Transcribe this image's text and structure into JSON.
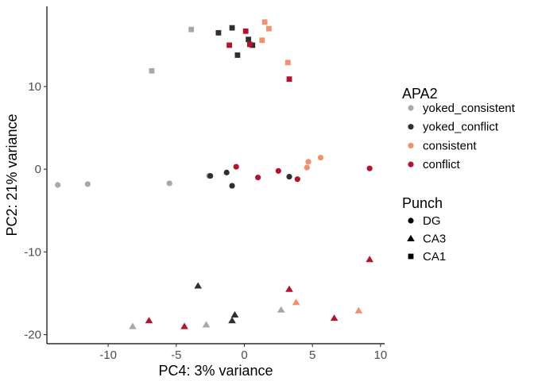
{
  "chart_data": {
    "type": "scatter",
    "xlabel": "PC4: 3% variance",
    "ylabel": "PC2: 21% variance",
    "xlim": [
      -14.5,
      10.3
    ],
    "ylim": [
      -21.1,
      19.7
    ],
    "xticks": [
      -10,
      -5,
      0,
      5,
      10
    ],
    "yticks": [
      -20,
      -10,
      0,
      10
    ],
    "xtick_labels": [
      "-10",
      "-5",
      "0",
      "5",
      "10"
    ],
    "ytick_labels": [
      "-20",
      "-10",
      "0",
      "10"
    ],
    "grid": false,
    "legend_position": "right",
    "legends": {
      "color": {
        "title": "APA2",
        "entries": [
          {
            "label": "yoked_consistent",
            "key": "yoked_consistent",
            "color": "#a8a8a8"
          },
          {
            "label": "yoked_conflict",
            "key": "yoked_conflict",
            "color": "#2f2f2f"
          },
          {
            "label": "consistent",
            "key": "consistent",
            "color": "#f1906d"
          },
          {
            "label": "conflict",
            "key": "conflict",
            "color": "#b5132d"
          }
        ]
      },
      "shape": {
        "title": "Punch",
        "entries": [
          {
            "label": "DG",
            "key": "DG",
            "shape": "circle"
          },
          {
            "label": "CA3",
            "key": "CA3",
            "shape": "triangle"
          },
          {
            "label": "CA1",
            "key": "CA1",
            "shape": "square"
          }
        ]
      }
    },
    "points": [
      {
        "x": -13.7,
        "y": -1.9,
        "APA2": "yoked_consistent",
        "Punch": "DG"
      },
      {
        "x": -11.5,
        "y": -1.8,
        "APA2": "yoked_consistent",
        "Punch": "DG"
      },
      {
        "x": -5.5,
        "y": -1.7,
        "APA2": "yoked_consistent",
        "Punch": "DG"
      },
      {
        "x": -2.6,
        "y": -0.8,
        "APA2": "yoked_consistent",
        "Punch": "DG"
      },
      {
        "x": -2.5,
        "y": -0.8,
        "APA2": "yoked_conflict",
        "Punch": "DG"
      },
      {
        "x": -1.3,
        "y": -0.4,
        "APA2": "yoked_conflict",
        "Punch": "DG"
      },
      {
        "x": -0.9,
        "y": -2.0,
        "APA2": "yoked_conflict",
        "Punch": "DG"
      },
      {
        "x": 3.3,
        "y": -0.9,
        "APA2": "yoked_conflict",
        "Punch": "DG"
      },
      {
        "x": -0.6,
        "y": 0.3,
        "APA2": "conflict",
        "Punch": "DG"
      },
      {
        "x": 1.0,
        "y": -1.0,
        "APA2": "conflict",
        "Punch": "DG"
      },
      {
        "x": 2.5,
        "y": -0.2,
        "APA2": "conflict",
        "Punch": "DG"
      },
      {
        "x": 3.9,
        "y": -1.2,
        "APA2": "conflict",
        "Punch": "DG"
      },
      {
        "x": 9.2,
        "y": 0.1,
        "APA2": "conflict",
        "Punch": "DG"
      },
      {
        "x": 4.6,
        "y": 0.2,
        "APA2": "consistent",
        "Punch": "DG"
      },
      {
        "x": 4.7,
        "y": 0.9,
        "APA2": "consistent",
        "Punch": "DG"
      },
      {
        "x": 5.6,
        "y": 1.4,
        "APA2": "consistent",
        "Punch": "DG"
      },
      {
        "x": -8.2,
        "y": -19.0,
        "APA2": "yoked_consistent",
        "Punch": "CA3"
      },
      {
        "x": -2.8,
        "y": -18.8,
        "APA2": "yoked_consistent",
        "Punch": "CA3"
      },
      {
        "x": 2.7,
        "y": -17.0,
        "APA2": "yoked_consistent",
        "Punch": "CA3"
      },
      {
        "x": -3.4,
        "y": -14.1,
        "APA2": "yoked_conflict",
        "Punch": "CA3"
      },
      {
        "x": -0.9,
        "y": -18.3,
        "APA2": "yoked_conflict",
        "Punch": "CA3"
      },
      {
        "x": -0.7,
        "y": -17.6,
        "APA2": "yoked_conflict",
        "Punch": "CA3"
      },
      {
        "x": 3.8,
        "y": -16.1,
        "APA2": "consistent",
        "Punch": "CA3"
      },
      {
        "x": 8.4,
        "y": -17.1,
        "APA2": "consistent",
        "Punch": "CA3"
      },
      {
        "x": -7.0,
        "y": -18.3,
        "APA2": "conflict",
        "Punch": "CA3"
      },
      {
        "x": -4.4,
        "y": -19.0,
        "APA2": "conflict",
        "Punch": "CA3"
      },
      {
        "x": 3.3,
        "y": -14.5,
        "APA2": "conflict",
        "Punch": "CA3"
      },
      {
        "x": 6.6,
        "y": -18.0,
        "APA2": "conflict",
        "Punch": "CA3"
      },
      {
        "x": 9.2,
        "y": -10.9,
        "APA2": "conflict",
        "Punch": "CA3"
      },
      {
        "x": -6.8,
        "y": 11.9,
        "APA2": "yoked_consistent",
        "Punch": "CA1"
      },
      {
        "x": -3.9,
        "y": 16.9,
        "APA2": "yoked_consistent",
        "Punch": "CA1"
      },
      {
        "x": -1.9,
        "y": 16.5,
        "APA2": "yoked_conflict",
        "Punch": "CA1"
      },
      {
        "x": -0.9,
        "y": 17.1,
        "APA2": "yoked_conflict",
        "Punch": "CA1"
      },
      {
        "x": -0.5,
        "y": 13.8,
        "APA2": "yoked_conflict",
        "Punch": "CA1"
      },
      {
        "x": 0.3,
        "y": 15.7,
        "APA2": "yoked_conflict",
        "Punch": "CA1"
      },
      {
        "x": 0.6,
        "y": 15.0,
        "APA2": "yoked_conflict",
        "Punch": "CA1"
      },
      {
        "x": -1.1,
        "y": 15.0,
        "APA2": "conflict",
        "Punch": "CA1"
      },
      {
        "x": 0.1,
        "y": 16.7,
        "APA2": "conflict",
        "Punch": "CA1"
      },
      {
        "x": 0.4,
        "y": 15.1,
        "APA2": "conflict",
        "Punch": "CA1"
      },
      {
        "x": 3.3,
        "y": 10.9,
        "APA2": "conflict",
        "Punch": "CA1"
      },
      {
        "x": 1.3,
        "y": 15.6,
        "APA2": "consistent",
        "Punch": "CA1"
      },
      {
        "x": 1.5,
        "y": 17.8,
        "APA2": "consistent",
        "Punch": "CA1"
      },
      {
        "x": 1.8,
        "y": 17.0,
        "APA2": "consistent",
        "Punch": "CA1"
      },
      {
        "x": 3.2,
        "y": 12.9,
        "APA2": "consistent",
        "Punch": "CA1"
      }
    ]
  }
}
